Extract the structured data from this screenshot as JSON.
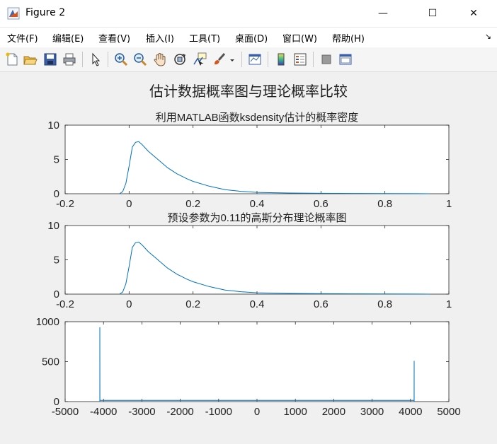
{
  "window": {
    "title": "Figure 2",
    "minimize_glyph": "—",
    "maximize_glyph": "☐",
    "close_glyph": "✕"
  },
  "menu": {
    "items": [
      "文件(F)",
      "编辑(E)",
      "查看(V)",
      "插入(I)",
      "工具(T)",
      "桌面(D)",
      "窗口(W)",
      "帮助(H)"
    ],
    "overflow_glyph": "↘"
  },
  "toolbar": {
    "icons": [
      "new-figure-icon",
      "open-file-icon",
      "save-icon",
      "print-icon",
      "pointer-icon",
      "zoom-in-icon",
      "zoom-out-icon",
      "pan-hand-icon",
      "rotate-3d-icon",
      "data-cursor-icon",
      "brush-icon",
      "link-plot-icon",
      "colorbar-icon",
      "legend-icon",
      "hide-plot-tools-icon",
      "show-plot-tools-icon"
    ]
  },
  "figure": {
    "suptitle": "估计数据概率图与理论概率比较",
    "line_color": "#0072bd"
  },
  "chart_data": [
    {
      "type": "line",
      "title": "利用MATLAB函数ksdensity估计的概率密度",
      "xlim": [
        -0.2,
        1
      ],
      "ylim": [
        0,
        10
      ],
      "xticks": [
        "-0.2",
        "0",
        "0.2",
        "0.4",
        "0.6",
        "0.8",
        "1"
      ],
      "yticks": [
        "0",
        "5",
        "10"
      ],
      "x": [
        -0.03,
        -0.02,
        -0.01,
        0,
        0.01,
        0.02,
        0.03,
        0.04,
        0.05,
        0.06,
        0.08,
        0.1,
        0.12,
        0.15,
        0.18,
        0.2,
        0.25,
        0.3,
        0.35,
        0.4,
        0.5,
        0.6,
        0.7,
        0.8,
        0.9,
        0.94
      ],
      "y": [
        0,
        0.3,
        1.5,
        4.0,
        6.8,
        7.5,
        7.6,
        7.2,
        6.7,
        6.2,
        5.4,
        4.6,
        3.8,
        2.9,
        2.2,
        1.8,
        1.1,
        0.6,
        0.35,
        0.2,
        0.1,
        0.06,
        0.04,
        0.02,
        0.01,
        0
      ]
    },
    {
      "type": "line",
      "title": "预设参数为0.11的高斯分布理论概率图",
      "xlim": [
        -0.2,
        1
      ],
      "ylim": [
        0,
        10
      ],
      "xticks": [
        "-0.2",
        "0",
        "0.2",
        "0.4",
        "0.6",
        "0.8",
        "1"
      ],
      "yticks": [
        "0",
        "5",
        "10"
      ],
      "x": [
        -0.03,
        -0.02,
        -0.01,
        0,
        0.01,
        0.02,
        0.03,
        0.04,
        0.05,
        0.06,
        0.08,
        0.1,
        0.12,
        0.15,
        0.18,
        0.2,
        0.25,
        0.3,
        0.35,
        0.4,
        0.5,
        0.6,
        0.7,
        0.8,
        0.9,
        0.94
      ],
      "y": [
        0,
        0.3,
        1.5,
        4.0,
        6.8,
        7.5,
        7.6,
        7.2,
        6.7,
        6.2,
        5.4,
        4.6,
        3.8,
        2.9,
        2.2,
        1.8,
        1.1,
        0.6,
        0.35,
        0.2,
        0.1,
        0.06,
        0.04,
        0.02,
        0.01,
        0
      ]
    },
    {
      "type": "line",
      "title": "",
      "xlim": [
        -5000,
        5000
      ],
      "ylim": [
        0,
        1000
      ],
      "xticks": [
        "-5000",
        "-4000",
        "-3000",
        "-2000",
        "-1000",
        "0",
        "1000",
        "2000",
        "3000",
        "4000",
        "5000"
      ],
      "yticks": [
        "0",
        "500",
        "1000"
      ],
      "x": [
        -4096,
        -4096,
        -4094,
        4094,
        4096,
        4096
      ],
      "y": [
        0,
        930,
        15,
        15,
        510,
        0
      ]
    }
  ]
}
